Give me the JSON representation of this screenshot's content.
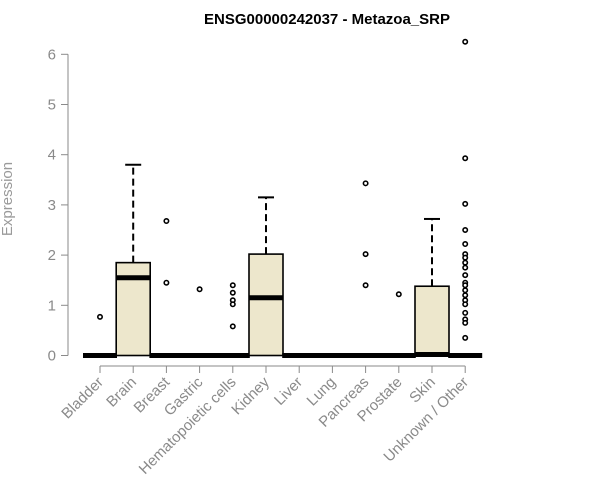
{
  "chart_data": {
    "type": "boxplot",
    "title": "ENSG00000242037 - Metazoa_SRP",
    "xlabel": "",
    "ylabel": "Expression",
    "ylim": [
      0,
      6.3
    ],
    "yticks": [
      0,
      1,
      2,
      3,
      4,
      5,
      6
    ],
    "grid": false,
    "box_fill": "#ede7cc",
    "box_stroke": "#000000",
    "axis_color": "#8a8a8a",
    "categories": [
      "Bladder",
      "Brain",
      "Breast",
      "Gastric",
      "Hematopoietic cells",
      "Kidney",
      "Liver",
      "Lung",
      "Pancreas",
      "Prostate",
      "Skin",
      "Unknown / Other"
    ],
    "boxes": [
      {
        "category": "Bladder",
        "min": 0,
        "q1": 0,
        "median": 0,
        "q3": 0,
        "max": 0,
        "outliers": [
          0.77
        ]
      },
      {
        "category": "Brain",
        "min": 0,
        "q1": 0,
        "median": 1.55,
        "q3": 1.85,
        "max": 3.8,
        "outliers": []
      },
      {
        "category": "Breast",
        "min": 0,
        "q1": 0,
        "median": 0,
        "q3": 0,
        "max": 0,
        "outliers": [
          2.68,
          1.45
        ]
      },
      {
        "category": "Gastric",
        "min": 0,
        "q1": 0,
        "median": 0,
        "q3": 0,
        "max": 0,
        "outliers": [
          1.32
        ]
      },
      {
        "category": "Hematopoietic cells",
        "min": 0,
        "q1": 0,
        "median": 0,
        "q3": 0,
        "max": 0,
        "outliers": [
          1.4,
          1.25,
          1.1,
          1.02,
          0.58
        ]
      },
      {
        "category": "Kidney",
        "min": 0,
        "q1": 0,
        "median": 1.15,
        "q3": 2.02,
        "max": 3.15,
        "outliers": []
      },
      {
        "category": "Liver",
        "min": 0,
        "q1": 0,
        "median": 0,
        "q3": 0,
        "max": 0,
        "outliers": []
      },
      {
        "category": "Lung",
        "min": 0,
        "q1": 0,
        "median": 0,
        "q3": 0,
        "max": 0,
        "outliers": []
      },
      {
        "category": "Pancreas",
        "min": 0,
        "q1": 0,
        "median": 0,
        "q3": 0,
        "max": 0,
        "outliers": [
          3.43,
          2.02,
          1.4
        ]
      },
      {
        "category": "Prostate",
        "min": 0,
        "q1": 0,
        "median": 0,
        "q3": 0,
        "max": 0,
        "outliers": [
          1.22
        ]
      },
      {
        "category": "Skin",
        "min": 0,
        "q1": 0,
        "median": 0.02,
        "q3": 1.38,
        "max": 2.72,
        "outliers": []
      },
      {
        "category": "Unknown / Other",
        "min": 0,
        "q1": 0,
        "median": 0,
        "q3": 0,
        "max": 0,
        "outliers": [
          6.25,
          3.93,
          3.02,
          2.5,
          2.22,
          2.02,
          1.95,
          1.85,
          1.75,
          1.6,
          1.45,
          1.4,
          1.3,
          1.2,
          1.1,
          1.02,
          0.85,
          0.72,
          0.65,
          0.35
        ]
      }
    ]
  }
}
